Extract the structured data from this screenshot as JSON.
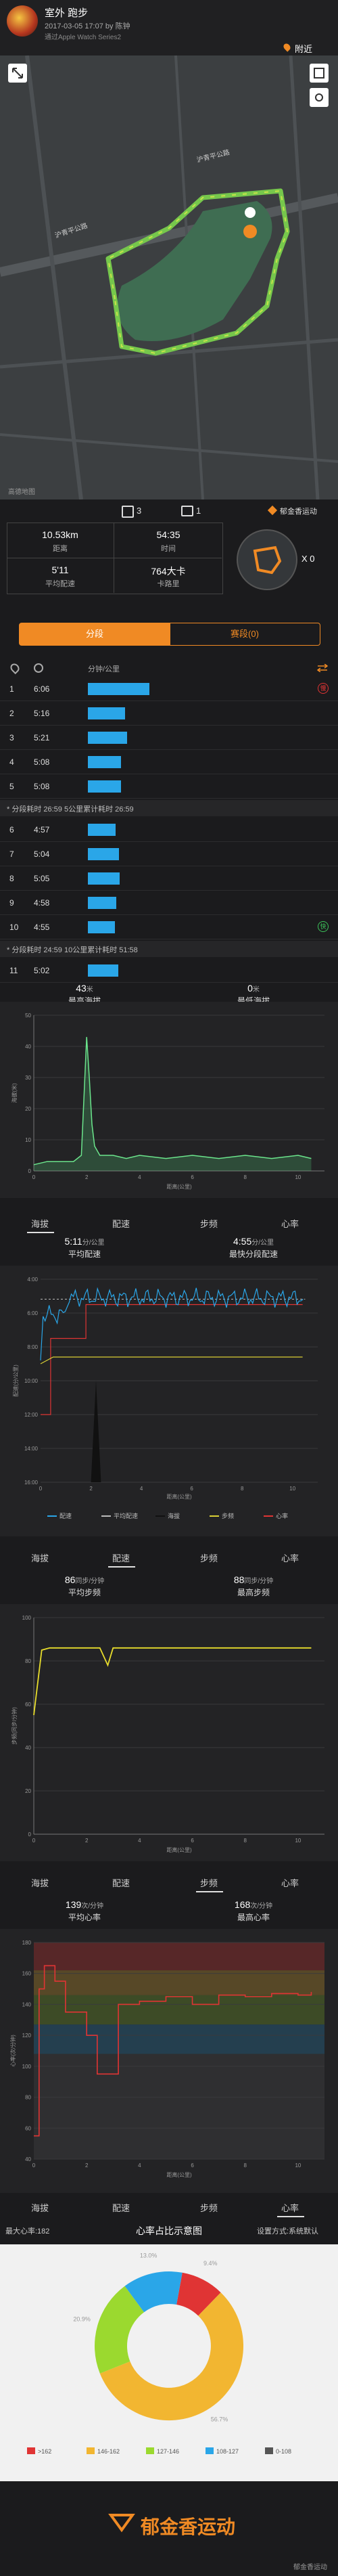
{
  "header": {
    "title": "室外 跑步",
    "meta": "2017-03-05 17:07 by 陈钟",
    "device": "通过Apple Watch Series2",
    "nearby": "附近"
  },
  "map": {
    "road_labels": [
      "沪青平公路",
      "沪青平公路"
    ],
    "watermark": "高德地图"
  },
  "social": {
    "likes": "3",
    "comments": "1",
    "brand": "郁金香运动"
  },
  "stats": [
    {
      "value": "10.53km",
      "label": "距离"
    },
    {
      "value": "54:35",
      "label": "时间"
    },
    {
      "value": "5'11",
      "label": "平均配速"
    },
    {
      "value": "764大卡",
      "label": "卡路里"
    }
  ],
  "route_badge": {
    "count": "X 0"
  },
  "segment_tabs": {
    "tab1": "分段",
    "tab2": "赛段(0)"
  },
  "splits": {
    "header_pace": "分钟/公里",
    "rows": [
      {
        "no": "1",
        "pace": "6:06",
        "seconds": 366
      },
      {
        "no": "2",
        "pace": "5:16",
        "seconds": 316
      },
      {
        "no": "3",
        "pace": "5:21",
        "seconds": 321
      },
      {
        "no": "4",
        "pace": "5:08",
        "seconds": 308
      },
      {
        "no": "5",
        "pace": "5:08",
        "seconds": 308
      }
    ],
    "summary1": "* 分段耗时 26:59   5公里累计耗时 26:59",
    "rows2": [
      {
        "no": "6",
        "pace": "4:57",
        "seconds": 297
      },
      {
        "no": "7",
        "pace": "5:04",
        "seconds": 304
      },
      {
        "no": "8",
        "pace": "5:05",
        "seconds": 305
      },
      {
        "no": "9",
        "pace": "4:58",
        "seconds": 298
      },
      {
        "no": "10",
        "pace": "4:55",
        "seconds": 295
      }
    ],
    "summary2": "* 分段耗时 24:59   10公里累计耗时 51:58",
    "rows3": [
      {
        "no": "11",
        "pace": "5:02",
        "seconds": 302
      }
    ]
  },
  "altitude": {
    "max_value": "43",
    "max_unit": "米",
    "max_label": "最高海拔",
    "min_value": "0",
    "min_unit": "米",
    "min_label": "最低海拔"
  },
  "tabs": [
    "海拔",
    "配速",
    "步频",
    "心率"
  ],
  "pace": {
    "avg_value": "5:11",
    "avg_unit": "分/公里",
    "avg_label": "平均配速",
    "fast_value": "4:55",
    "fast_unit": "分/公里",
    "fast_label": "最快分段配速"
  },
  "cadence": {
    "avg_value": "86",
    "avg_unit": "同步/分钟",
    "avg_label": "平均步频",
    "max_value": "88",
    "max_unit": "同步/分钟",
    "max_label": "最高步频"
  },
  "hr": {
    "avg_value": "139",
    "avg_unit": "次/分钟",
    "avg_label": "平均心率",
    "max_value": "168",
    "max_unit": "次/分钟",
    "max_label": "最高心率"
  },
  "hr_zone": {
    "maxhr": "最大心率:182",
    "title": "心率占比示意图",
    "setting": "设置方式:系统默认"
  },
  "footer": {
    "brand": "郁金香运动",
    "tag": "郁金香运动"
  },
  "chart_data": [
    {
      "type": "area",
      "title": "",
      "xlabel": "距离(公里)",
      "ylabel": "海拔(米)",
      "xlim": [
        0,
        11
      ],
      "ylim": [
        0,
        50
      ],
      "x_ticks": [
        "0",
        "2",
        "4",
        "6",
        "8",
        "10"
      ],
      "y_ticks": [
        "0",
        "10",
        "20",
        "30",
        "40",
        "50"
      ],
      "series": [
        {
          "x": [
            0,
            0.5,
            1,
            1.5,
            1.8,
            2,
            2.1,
            2.2,
            2.3,
            2.5,
            2.8,
            3,
            3.5,
            4,
            5,
            6,
            7,
            8,
            9,
            10,
            10.5
          ],
          "values": [
            2,
            3,
            3,
            3,
            5,
            43,
            30,
            15,
            8,
            5,
            5,
            5,
            4,
            5,
            4,
            5,
            4,
            5,
            4,
            5,
            4
          ]
        }
      ]
    },
    {
      "type": "line",
      "title": "",
      "xlabel": "距离(公里)",
      "ylabel": "配速(分/公里)",
      "xlim": [
        0,
        11
      ],
      "y_ticks": [
        "4:00",
        "6:00",
        "8:00",
        "10:00",
        "12:00",
        "14:00",
        "16:00"
      ],
      "x_ticks": [
        "0",
        "2",
        "4",
        "6",
        "8",
        "10"
      ],
      "legend": [
        "配速",
        "平均配速",
        "海拔",
        "步频",
        "心率"
      ]
    },
    {
      "type": "line",
      "title": "",
      "xlabel": "距离(公里)",
      "ylabel": "步频(同步/分钟)",
      "xlim": [
        0,
        11
      ],
      "ylim": [
        0,
        100
      ],
      "x_ticks": [
        "0",
        "2",
        "4",
        "6",
        "8",
        "10"
      ],
      "y_ticks": [
        "0",
        "20",
        "40",
        "60",
        "80",
        "100"
      ],
      "series": [
        {
          "name": "步频",
          "x": [
            0,
            0.3,
            0.6,
            1,
            2,
            2.5,
            2.8,
            3,
            4,
            5,
            6,
            7,
            8,
            9,
            10,
            10.5
          ],
          "values": [
            55,
            85,
            86,
            86,
            86,
            86,
            78,
            86,
            86,
            86,
            86,
            86,
            86,
            86,
            86,
            86
          ]
        }
      ]
    },
    {
      "type": "line",
      "title": "",
      "xlabel": "距离(公里)",
      "ylabel": "心率(次/分钟)",
      "xlim": [
        0,
        11
      ],
      "ylim": [
        40,
        180
      ],
      "x_ticks": [
        "0",
        "2",
        "4",
        "6",
        "8",
        "10"
      ],
      "y_ticks": [
        "40",
        "60",
        "80",
        "100",
        "120",
        "140",
        "160",
        "180"
      ],
      "series": [
        {
          "name": "心率",
          "x": [
            0,
            0.2,
            0.4,
            0.8,
            1.2,
            1.6,
            2.0,
            2.4,
            2.8,
            3.2,
            3.6,
            4,
            5,
            6,
            7,
            8,
            9,
            10,
            10.5
          ],
          "values": [
            55,
            150,
            165,
            155,
            135,
            135,
            120,
            95,
            95,
            140,
            140,
            142,
            145,
            140,
            146,
            145,
            147,
            146,
            148
          ]
        }
      ]
    },
    {
      "type": "pie",
      "title": "心率占比示意图",
      "labels": [
        ">162",
        "146-162",
        "127-146",
        "108-127",
        "0-108"
      ],
      "values": [
        9.4,
        56.7,
        20.9,
        13.0,
        0.0
      ],
      "colors": [
        "#e03434",
        "#f2b631",
        "#9bd92f",
        "#2aa6e8",
        "#555555"
      ]
    }
  ]
}
